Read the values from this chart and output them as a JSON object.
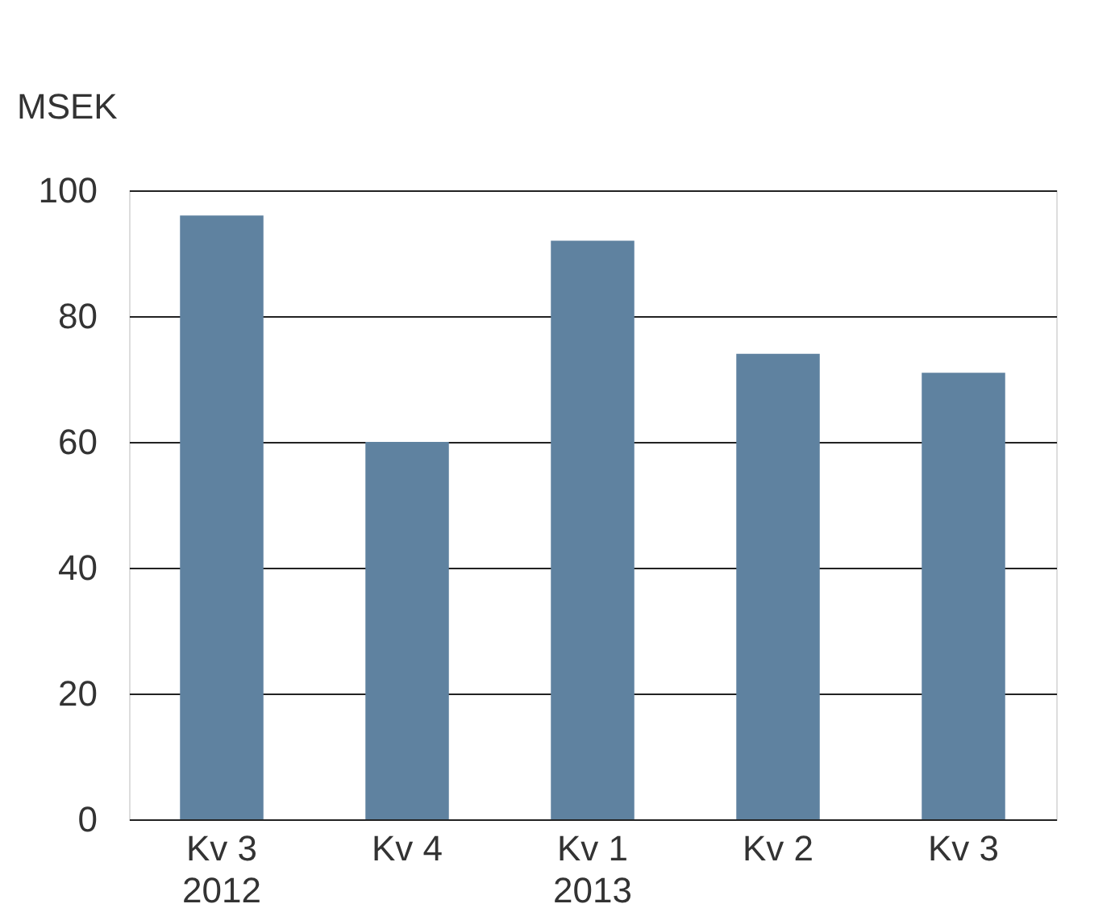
{
  "chart_data": {
    "type": "bar",
    "ylabel": "MSEK",
    "categories": [
      "Kv 3\n2012",
      "Kv 4",
      "Kv 1\n2013",
      "Kv 2",
      "Kv 3"
    ],
    "values": [
      96,
      60,
      92,
      74,
      71
    ],
    "color": "#5f82a0",
    "ylim": [
      0,
      100
    ],
    "yticks": [
      0,
      20,
      40,
      60,
      80,
      100
    ],
    "grid": "y"
  }
}
